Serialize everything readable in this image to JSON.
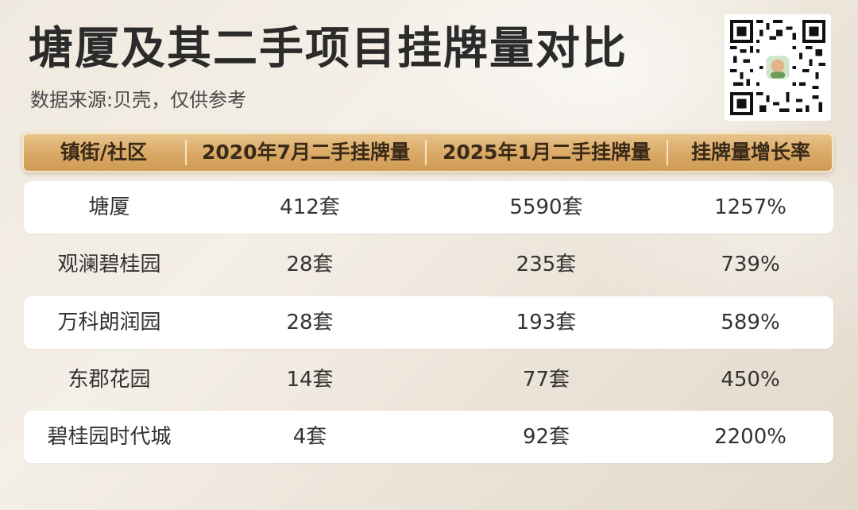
{
  "title": "塘厦及其二手项目挂牌量对比",
  "subtitle": "数据来源:贝壳，仅供参考",
  "qr_code": {
    "icon": "qr-code-icon"
  },
  "table": {
    "headers": [
      "镇街/社区",
      "2020年7月二手挂牌量",
      "2025年1月二手挂牌量",
      "挂牌量增长率"
    ],
    "rows": [
      [
        "塘厦",
        "412套",
        "5590套",
        "1257%"
      ],
      [
        "观澜碧桂园",
        "28套",
        "235套",
        "739%"
      ],
      [
        "万科朗润园",
        "28套",
        "193套",
        "589%"
      ],
      [
        "东郡花园",
        "14套",
        "77套",
        "450%"
      ],
      [
        "碧桂园时代城",
        "4套",
        "92套",
        "2200%"
      ]
    ]
  },
  "colors": {
    "header_gold": "#d9a864",
    "row_shade": "#ffffff",
    "text_dark": "#333333"
  }
}
